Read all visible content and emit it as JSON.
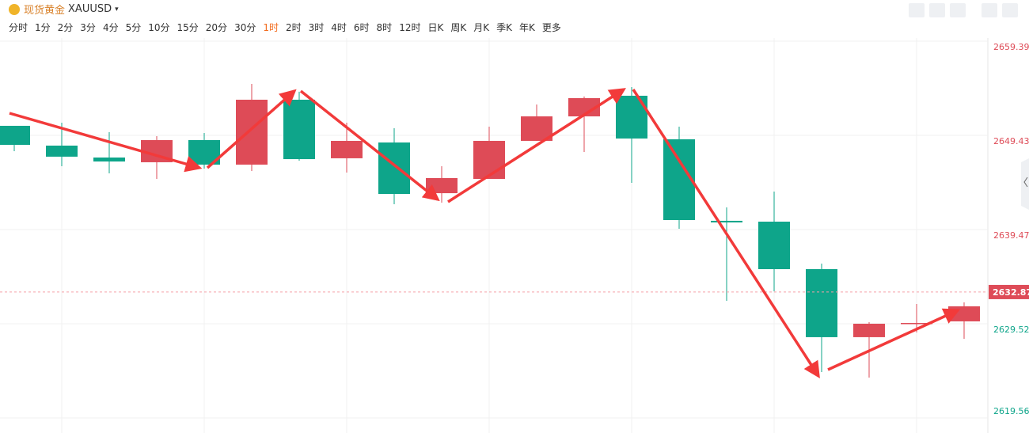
{
  "toolbar": {
    "symbol_name": "现货黄金",
    "symbol": "XAUUSD",
    "periods": [
      "分时",
      "1分",
      "2分",
      "3分",
      "4分",
      "5分",
      "10分",
      "15分",
      "20分",
      "30分",
      "1时",
      "2时",
      "3时",
      "4时",
      "6时",
      "8时",
      "12时",
      "日K",
      "周K",
      "月K",
      "季K",
      "年K",
      "更多"
    ],
    "active_period": 10
  },
  "chart_data": {
    "type": "candlestick",
    "up_color": "#de4b57",
    "down_color": "#0ea58a",
    "open": [
      2650.44,
      2648.35,
      2647.09,
      2646.59,
      2648.93,
      2646.34,
      2653.2,
      2647.01,
      2648.68,
      2643.32,
      2644.83,
      2648.85,
      2651.44,
      2653.62,
      2649.02,
      2640.4,
      2640.31,
      2635.29,
      2628.1,
      2629.52,
      2629.77
    ],
    "high": [
      2650.44,
      2650.77,
      2649.77,
      2649.35,
      2649.68,
      2654.87,
      2654.04,
      2650.77,
      2650.19,
      2646.17,
      2650.35,
      2652.7,
      2653.54,
      2654.54,
      2650.35,
      2641.82,
      2643.49,
      2635.88,
      2629.69,
      2631.61,
      2631.78
    ],
    "low": [
      2647.76,
      2646.17,
      2645.42,
      2644.83,
      2645.92,
      2645.67,
      2646.76,
      2645.5,
      2642.15,
      2642.32,
      2644.83,
      2648.85,
      2647.68,
      2644.41,
      2639.56,
      2631.94,
      2632.95,
      2624.41,
      2623.83,
      2628.6,
      2627.93
    ],
    "close": [
      2648.43,
      2647.18,
      2646.67,
      2648.93,
      2646.34,
      2653.2,
      2646.92,
      2648.85,
      2643.24,
      2644.92,
      2648.85,
      2651.44,
      2653.37,
      2649.1,
      2640.48,
      2640.23,
      2635.29,
      2628.1,
      2629.52,
      2629.6,
      2631.36
    ],
    "ylim": [
      2619.56,
      2659.39
    ],
    "yticks": [
      2619.56,
      2629.52,
      2639.47,
      2649.43,
      2659.39
    ],
    "last_price": 2632.87,
    "grid": true
  }
}
